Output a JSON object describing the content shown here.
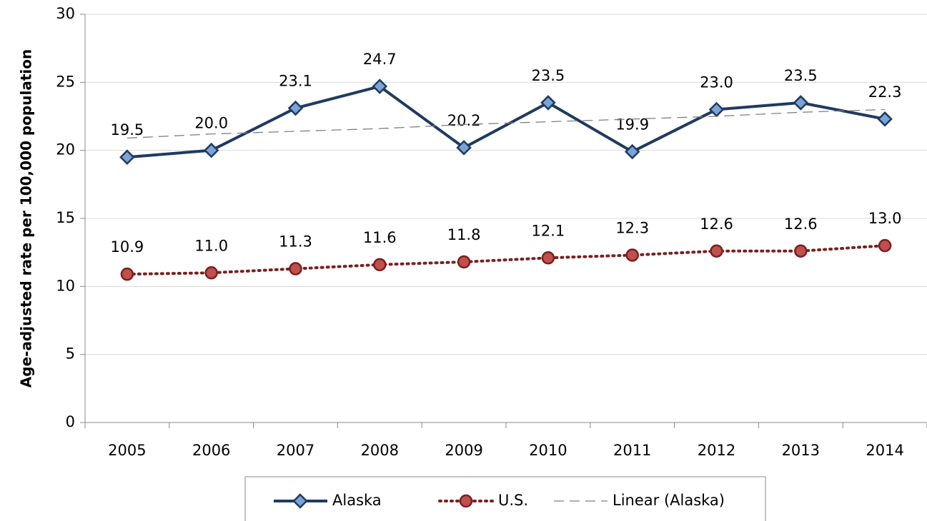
{
  "chart_data": {
    "type": "line",
    "y_axis_label": "Age-adjusted rate per 100,000 population",
    "categories": [
      "2005",
      "2006",
      "2007",
      "2008",
      "2009",
      "2010",
      "2011",
      "2012",
      "2013",
      "2014"
    ],
    "series": [
      {
        "name": "Alaska",
        "color": "#1f3a5f",
        "marker": "diamond",
        "marker_color": "#7ba3d6",
        "line_style": "solid",
        "data_labels": true,
        "values": [
          19.5,
          20.0,
          23.1,
          24.7,
          20.2,
          23.5,
          19.9,
          23.0,
          23.5,
          22.3
        ],
        "value_labels": [
          "19.5",
          "20.0",
          "23.1",
          "24.7",
          "20.2",
          "23.5",
          "19.9",
          "23.0",
          "23.5",
          "22.3"
        ]
      },
      {
        "name": "U.S.",
        "color": "#7a1f1f",
        "marker": "circle",
        "marker_color": "#c0504d",
        "line_style": "dotted",
        "data_labels": true,
        "values": [
          10.9,
          11.0,
          11.3,
          11.6,
          11.8,
          12.1,
          12.3,
          12.6,
          12.6,
          13.0
        ],
        "value_labels": [
          "10.9",
          "11.0",
          "11.3",
          "11.6",
          "11.8",
          "12.1",
          "12.3",
          "12.6",
          "12.6",
          "13.0"
        ]
      },
      {
        "name": "Linear (Alaska)",
        "color": "#7f7f7f",
        "marker": "none",
        "line_style": "dashed",
        "data_labels": false,
        "values": [
          20.9,
          21.2,
          21.4,
          21.6,
          21.9,
          22.1,
          22.3,
          22.5,
          22.8,
          23.0
        ]
      }
    ],
    "ylim": [
      0,
      30
    ],
    "yticks": [
      0,
      5,
      10,
      15,
      20,
      25,
      30
    ],
    "grid": true,
    "legend": "bottom"
  }
}
